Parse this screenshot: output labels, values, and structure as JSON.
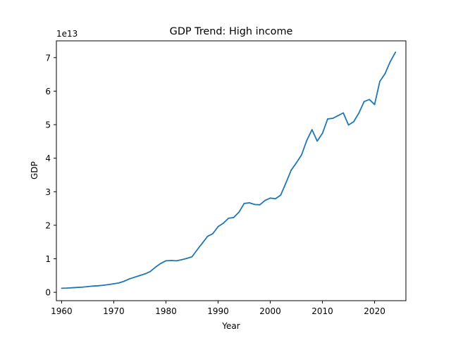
{
  "chart_data": {
    "type": "line",
    "title": "GDP Trend: High income",
    "xlabel": "Year",
    "ylabel": "GDP",
    "y_scale_label": "1e13",
    "xlim": [
      1959,
      2026
    ],
    "ylim": [
      -0.25,
      7.5
    ],
    "x_ticks": [
      1960,
      1970,
      1980,
      1990,
      2000,
      2010,
      2020
    ],
    "y_ticks": [
      0,
      1,
      2,
      3,
      4,
      5,
      6,
      7
    ],
    "grid": false,
    "line_color": "#1f77b4",
    "series": [
      {
        "x": [
          1960,
          1961,
          1962,
          1963,
          1964,
          1965,
          1966,
          1967,
          1968,
          1969,
          1970,
          1971,
          1972,
          1973,
          1974,
          1975,
          1976,
          1977,
          1978,
          1979,
          1980,
          1981,
          1982,
          1983,
          1984,
          1985,
          1986,
          1987,
          1988,
          1989,
          1990,
          1991,
          1992,
          1993,
          1994,
          1995,
          1996,
          1997,
          1998,
          1999,
          2000,
          2001,
          2002,
          2003,
          2004,
          2005,
          2006,
          2007,
          2008,
          2009,
          2010,
          2011,
          2012,
          2013,
          2014,
          2015,
          2016,
          2017,
          2018,
          2019,
          2020,
          2021,
          2022,
          2023,
          2024
        ],
        "values": [
          0.12,
          0.125,
          0.135,
          0.145,
          0.155,
          0.17,
          0.185,
          0.195,
          0.21,
          0.23,
          0.255,
          0.28,
          0.33,
          0.4,
          0.45,
          0.5,
          0.55,
          0.62,
          0.75,
          0.86,
          0.94,
          0.95,
          0.94,
          0.97,
          1.01,
          1.06,
          1.27,
          1.47,
          1.67,
          1.75,
          1.96,
          2.06,
          2.21,
          2.23,
          2.39,
          2.65,
          2.67,
          2.62,
          2.61,
          2.74,
          2.81,
          2.79,
          2.9,
          3.26,
          3.64,
          3.86,
          4.1,
          4.53,
          4.85,
          4.51,
          4.74,
          5.17,
          5.19,
          5.27,
          5.35,
          4.99,
          5.09,
          5.35,
          5.69,
          5.75,
          5.6,
          6.29,
          6.52,
          6.88,
          7.16
        ]
      }
    ]
  }
}
